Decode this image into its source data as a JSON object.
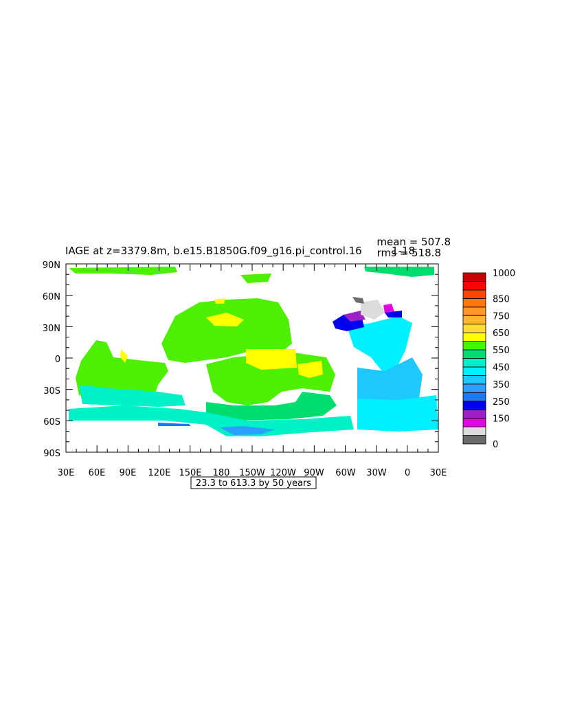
{
  "title": "IAGE at z=3379.8m, b.e15.B1850G.f09_g16.pi_control.16",
  "title_suffix": "1-18",
  "stats": {
    "mean": "mean = 507.8",
    "rms": "rms = 518.8"
  },
  "contour_info": "23.3 to 613.3 by 50 years",
  "axes": {
    "y_ticks": [
      "90N",
      "60N",
      "30N",
      "0",
      "30S",
      "60S",
      "90S"
    ],
    "x_ticks": [
      "30E",
      "60E",
      "90E",
      "120E",
      "150E",
      "180",
      "150W",
      "120W",
      "90W",
      "60W",
      "30W",
      "0",
      "30E"
    ]
  },
  "colorbar": {
    "colors": [
      "#6b6b6b",
      "#dcdcdc",
      "#e600e6",
      "#a020c8",
      "#0000f0",
      "#1e78ff",
      "#28a0ff",
      "#1ec8ff",
      "#00f0ff",
      "#00f0c8",
      "#00dc6e",
      "#4cf000",
      "#ffff00",
      "#ffdc32",
      "#ffb43c",
      "#ff9628",
      "#ff780a",
      "#ff4600",
      "#ff0000",
      "#c80000"
    ],
    "labels": [
      {
        "text": "1000",
        "at": 20
      },
      {
        "text": "850",
        "at": 17
      },
      {
        "text": "750",
        "at": 15
      },
      {
        "text": "650",
        "at": 13
      },
      {
        "text": "550",
        "at": 11
      },
      {
        "text": "450",
        "at": 9
      },
      {
        "text": "350",
        "at": 7
      },
      {
        "text": "250",
        "at": 5
      },
      {
        "text": "150",
        "at": 3
      },
      {
        "text": "0",
        "at": 0
      }
    ]
  }
}
